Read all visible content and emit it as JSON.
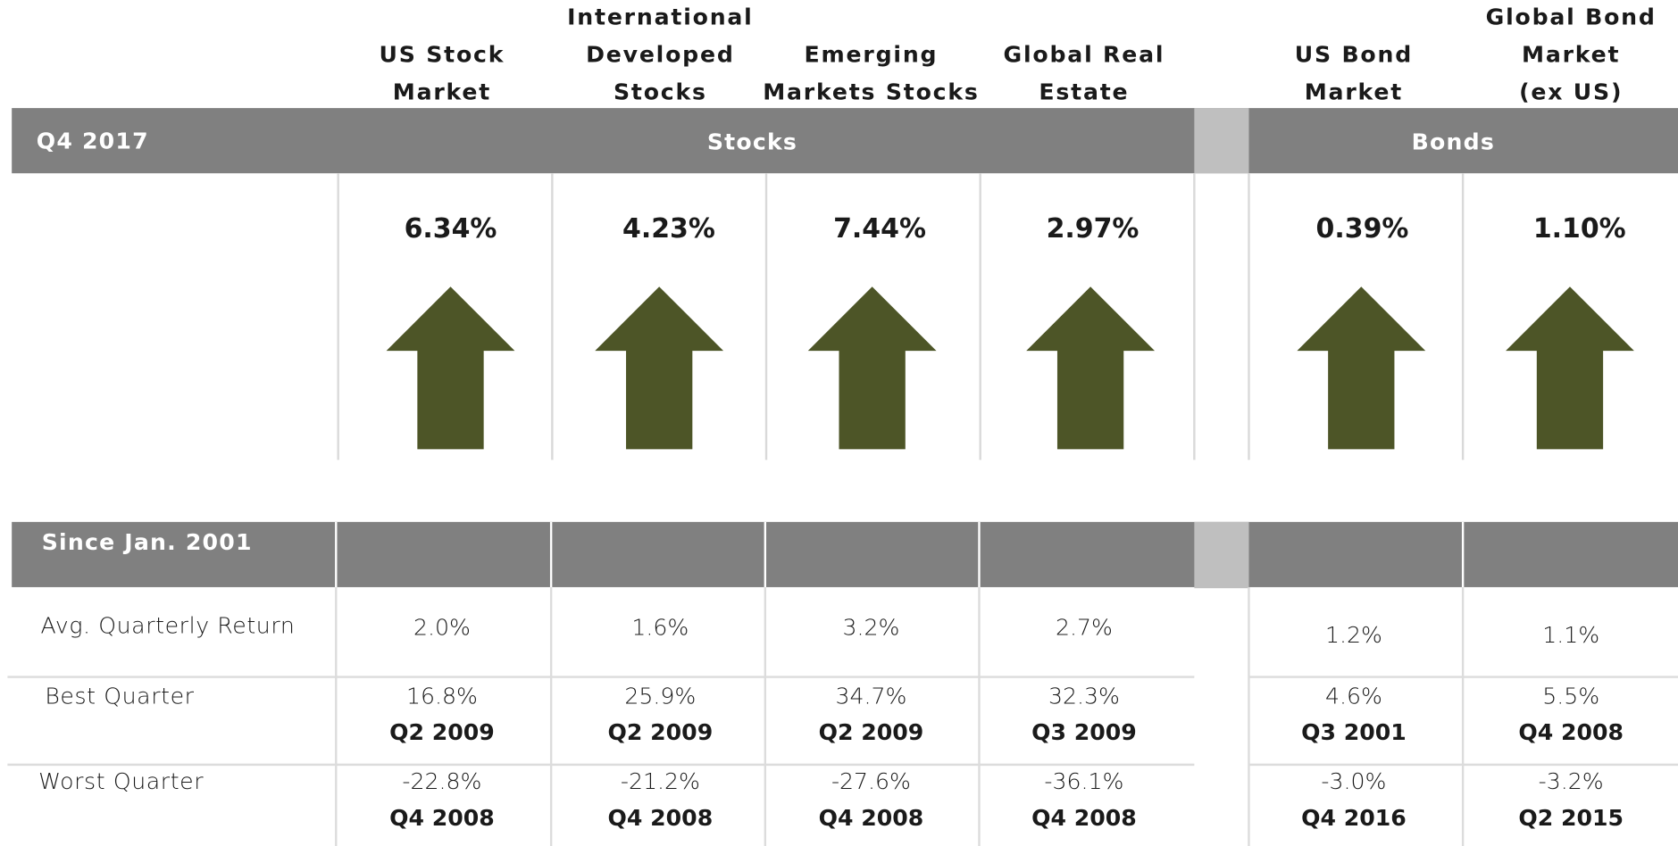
{
  "headers": [
    [
      "US Stock",
      "Market"
    ],
    [
      "International",
      "Developed",
      "Stocks"
    ],
    [
      "Emerging",
      "Markets  Stocks"
    ],
    [
      "Global  Real",
      "Estate"
    ],
    [
      "US Bond",
      "Market"
    ],
    [
      "Global  Bond",
      "Market",
      "(ex US)"
    ]
  ],
  "quarter": {
    "label": "Q4 2017",
    "groups": [
      "Stocks",
      "Bonds"
    ],
    "returns": [
      "6.34%",
      "4.23%",
      "7.44%",
      "2.97%",
      "0.39%",
      "1.10%"
    ]
  },
  "since": {
    "label": "Since Jan. 2001",
    "avg": {
      "label": "Avg. Quarterly Return",
      "values": [
        "2.0%",
        "1.6%",
        "3.2%",
        "2.7%",
        "1.2%",
        "1.1%"
      ]
    },
    "best": {
      "label": "Best Quarter",
      "values": [
        "16.8%",
        "25.9%",
        "34.7%",
        "32.3%",
        "4.6%",
        "5.5%"
      ],
      "quarters": [
        "Q2 2009",
        "Q2 2009",
        "Q2 2009",
        "Q3 2009",
        "Q3 2001",
        "Q4 2008"
      ]
    },
    "worst": {
      "label": "Worst Quarter",
      "values": [
        "-22.8%",
        "-21.2%",
        "-27.6%",
        "-36.1%",
        "-3.0%",
        "-3.2%"
      ],
      "quarters": [
        "Q4 2008",
        "Q4 2008",
        "Q4 2008",
        "Q4 2008",
        "Q4 2016",
        "Q2 2015"
      ]
    }
  }
}
